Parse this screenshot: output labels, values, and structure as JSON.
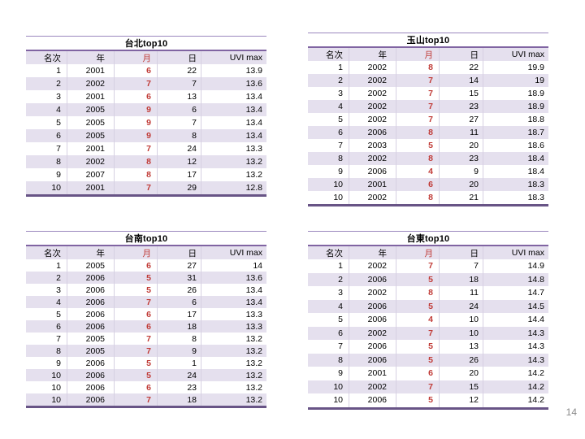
{
  "page": {
    "number": "14"
  },
  "colors": {
    "background": "#ffffff",
    "accent_purple_border": "#8064a2",
    "table_top_border": "#9b88be",
    "table_bottom_border": "#685486",
    "row_stripe": "#e5e0ee",
    "column_divider": "#d6d0e2",
    "month_red": "#c03a36",
    "page_number_gray": "#8a8a8a",
    "text": "#000000"
  },
  "tables": [
    {
      "id": "taipei",
      "title": "台北top10",
      "headers": [
        "名次",
        "年",
        "月",
        "日",
        "UVI max"
      ],
      "rows": [
        [
          "1",
          "2001",
          "6",
          "22",
          "13.9"
        ],
        [
          "2",
          "2002",
          "7",
          "7",
          "13.6"
        ],
        [
          "3",
          "2001",
          "6",
          "13",
          "13.4"
        ],
        [
          "4",
          "2005",
          "9",
          "6",
          "13.4"
        ],
        [
          "5",
          "2005",
          "9",
          "7",
          "13.4"
        ],
        [
          "6",
          "2005",
          "9",
          "8",
          "13.4"
        ],
        [
          "7",
          "2001",
          "7",
          "24",
          "13.3"
        ],
        [
          "8",
          "2002",
          "8",
          "12",
          "13.2"
        ],
        [
          "9",
          "2007",
          "8",
          "17",
          "13.2"
        ],
        [
          "10",
          "2001",
          "7",
          "29",
          "12.8"
        ]
      ]
    },
    {
      "id": "yushan",
      "title": "玉山top10",
      "headers": [
        "名次",
        "年",
        "月",
        "日",
        "UVI max"
      ],
      "rows": [
        [
          "1",
          "2002",
          "8",
          "22",
          "19.9"
        ],
        [
          "2",
          "2002",
          "7",
          "14",
          "19"
        ],
        [
          "3",
          "2002",
          "7",
          "15",
          "18.9"
        ],
        [
          "4",
          "2002",
          "7",
          "23",
          "18.9"
        ],
        [
          "5",
          "2002",
          "7",
          "27",
          "18.8"
        ],
        [
          "6",
          "2006",
          "8",
          "11",
          "18.7"
        ],
        [
          "7",
          "2003",
          "5",
          "20",
          "18.6"
        ],
        [
          "8",
          "2002",
          "8",
          "23",
          "18.4"
        ],
        [
          "9",
          "2006",
          "4",
          "9",
          "18.4"
        ],
        [
          "10",
          "2001",
          "6",
          "20",
          "18.3"
        ],
        [
          "10",
          "2002",
          "8",
          "21",
          "18.3"
        ]
      ]
    },
    {
      "id": "tainan",
      "title": "台南top10",
      "headers": [
        "名次",
        "年",
        "月",
        "日",
        "UVI max"
      ],
      "rows": [
        [
          "1",
          "2005",
          "6",
          "27",
          "14"
        ],
        [
          "2",
          "2006",
          "5",
          "31",
          "13.6"
        ],
        [
          "3",
          "2006",
          "5",
          "26",
          "13.4"
        ],
        [
          "4",
          "2006",
          "7",
          "6",
          "13.4"
        ],
        [
          "5",
          "2006",
          "6",
          "17",
          "13.3"
        ],
        [
          "6",
          "2006",
          "6",
          "18",
          "13.3"
        ],
        [
          "7",
          "2005",
          "7",
          "8",
          "13.2"
        ],
        [
          "8",
          "2005",
          "7",
          "9",
          "13.2"
        ],
        [
          "9",
          "2006",
          "5",
          "1",
          "13.2"
        ],
        [
          "10",
          "2006",
          "5",
          "24",
          "13.2"
        ],
        [
          "10",
          "2006",
          "6",
          "23",
          "13.2"
        ],
        [
          "10",
          "2006",
          "7",
          "18",
          "13.2"
        ]
      ]
    },
    {
      "id": "taitung",
      "title": "台東top10",
      "headers": [
        "名次",
        "年",
        "月",
        "日",
        "UVI max"
      ],
      "rows": [
        [
          "1",
          "2002",
          "7",
          "7",
          "14.9"
        ],
        [
          "2",
          "2006",
          "5",
          "18",
          "14.8"
        ],
        [
          "3",
          "2002",
          "8",
          "11",
          "14.7"
        ],
        [
          "4",
          "2006",
          "5",
          "24",
          "14.5"
        ],
        [
          "5",
          "2006",
          "4",
          "10",
          "14.4"
        ],
        [
          "6",
          "2002",
          "7",
          "10",
          "14.3"
        ],
        [
          "7",
          "2006",
          "5",
          "13",
          "14.3"
        ],
        [
          "8",
          "2006",
          "5",
          "26",
          "14.3"
        ],
        [
          "9",
          "2001",
          "6",
          "20",
          "14.2"
        ],
        [
          "10",
          "2002",
          "7",
          "15",
          "14.2"
        ],
        [
          "10",
          "2006",
          "5",
          "12",
          "14.2"
        ]
      ]
    }
  ]
}
